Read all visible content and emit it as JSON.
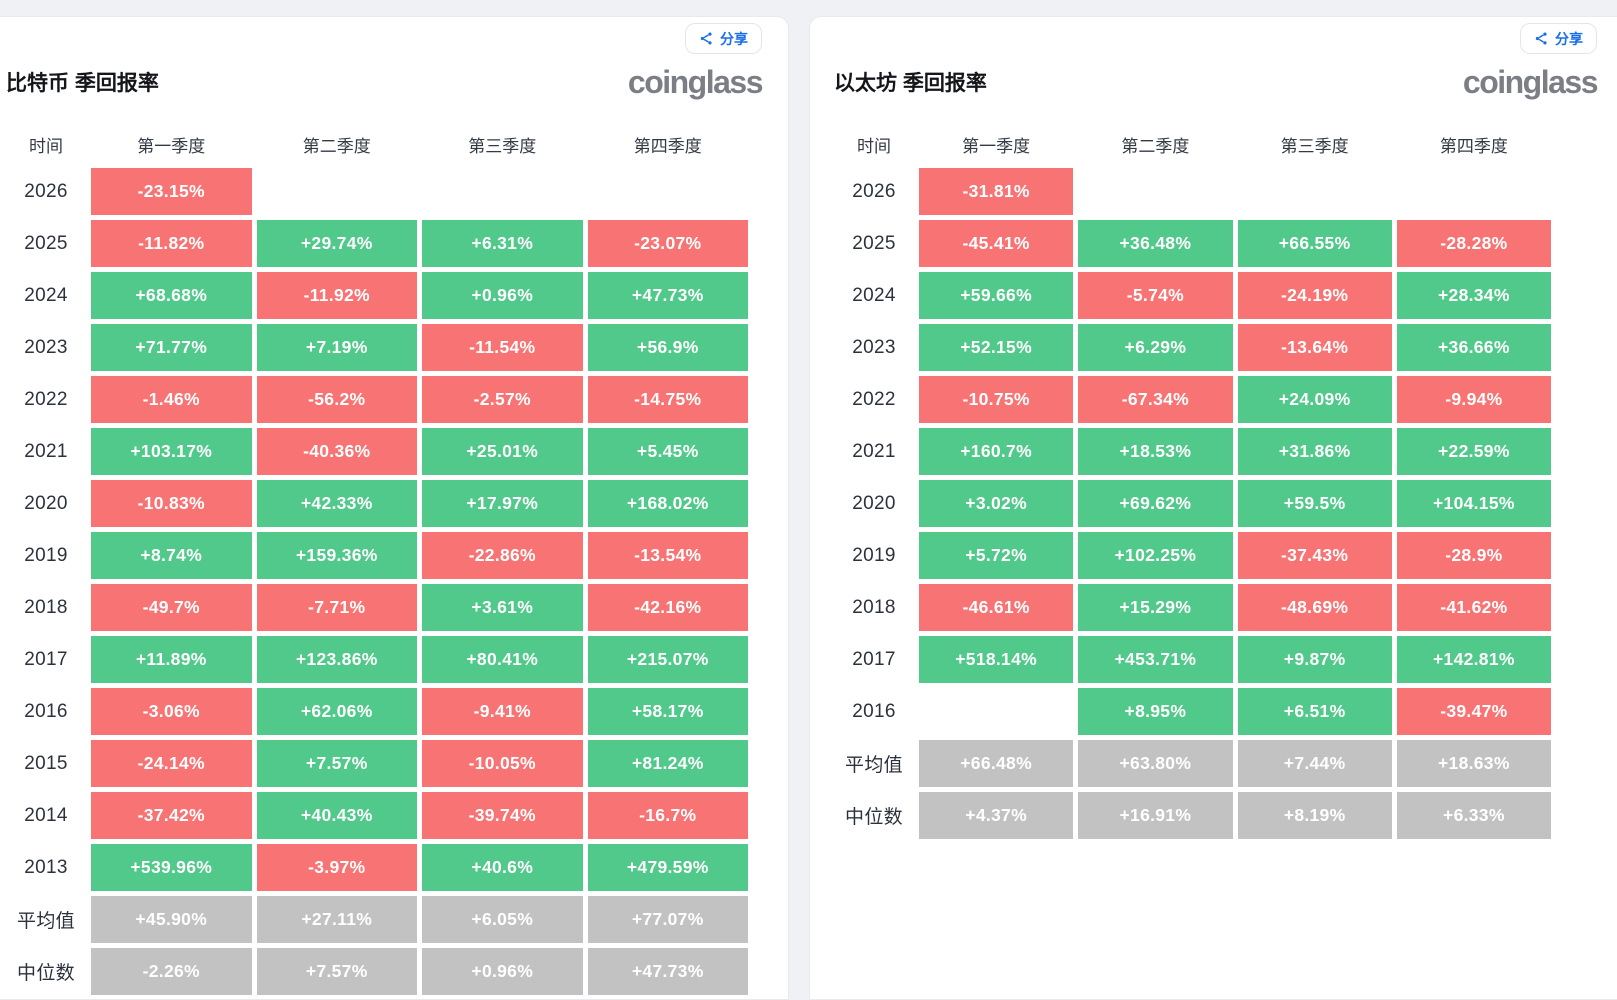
{
  "ui": {
    "share_label": "分享",
    "logo_text": "coinglass"
  },
  "colors": {
    "positive": "#50c98a",
    "negative": "#f87373",
    "neutral": "#c2c2c3",
    "accent_blue": "#1a6ee8",
    "logo_gray": "#7b7f85",
    "page_background": "#eff1f4"
  },
  "chart_data": [
    {
      "type": "table",
      "title": "比特币 季回报率",
      "columns": [
        "时间",
        "第一季度",
        "第二季度",
        "第三季度",
        "第四季度"
      ],
      "rows": [
        {
          "label": "2026",
          "cells": [
            {
              "value": "-23.15%",
              "tone": "negative"
            },
            null,
            null,
            null
          ]
        },
        {
          "label": "2025",
          "cells": [
            {
              "value": "-11.82%",
              "tone": "negative"
            },
            {
              "value": "+29.74%",
              "tone": "positive"
            },
            {
              "value": "+6.31%",
              "tone": "positive"
            },
            {
              "value": "-23.07%",
              "tone": "negative"
            }
          ]
        },
        {
          "label": "2024",
          "cells": [
            {
              "value": "+68.68%",
              "tone": "positive"
            },
            {
              "value": "-11.92%",
              "tone": "negative"
            },
            {
              "value": "+0.96%",
              "tone": "positive"
            },
            {
              "value": "+47.73%",
              "tone": "positive"
            }
          ]
        },
        {
          "label": "2023",
          "cells": [
            {
              "value": "+71.77%",
              "tone": "positive"
            },
            {
              "value": "+7.19%",
              "tone": "positive"
            },
            {
              "value": "-11.54%",
              "tone": "negative"
            },
            {
              "value": "+56.9%",
              "tone": "positive"
            }
          ]
        },
        {
          "label": "2022",
          "cells": [
            {
              "value": "-1.46%",
              "tone": "negative"
            },
            {
              "value": "-56.2%",
              "tone": "negative"
            },
            {
              "value": "-2.57%",
              "tone": "negative"
            },
            {
              "value": "-14.75%",
              "tone": "negative"
            }
          ]
        },
        {
          "label": "2021",
          "cells": [
            {
              "value": "+103.17%",
              "tone": "positive"
            },
            {
              "value": "-40.36%",
              "tone": "negative"
            },
            {
              "value": "+25.01%",
              "tone": "positive"
            },
            {
              "value": "+5.45%",
              "tone": "positive"
            }
          ]
        },
        {
          "label": "2020",
          "cells": [
            {
              "value": "-10.83%",
              "tone": "negative"
            },
            {
              "value": "+42.33%",
              "tone": "positive"
            },
            {
              "value": "+17.97%",
              "tone": "positive"
            },
            {
              "value": "+168.02%",
              "tone": "positive"
            }
          ]
        },
        {
          "label": "2019",
          "cells": [
            {
              "value": "+8.74%",
              "tone": "positive"
            },
            {
              "value": "+159.36%",
              "tone": "positive"
            },
            {
              "value": "-22.86%",
              "tone": "negative"
            },
            {
              "value": "-13.54%",
              "tone": "negative"
            }
          ]
        },
        {
          "label": "2018",
          "cells": [
            {
              "value": "-49.7%",
              "tone": "negative"
            },
            {
              "value": "-7.71%",
              "tone": "negative"
            },
            {
              "value": "+3.61%",
              "tone": "positive"
            },
            {
              "value": "-42.16%",
              "tone": "negative"
            }
          ]
        },
        {
          "label": "2017",
          "cells": [
            {
              "value": "+11.89%",
              "tone": "positive"
            },
            {
              "value": "+123.86%",
              "tone": "positive"
            },
            {
              "value": "+80.41%",
              "tone": "positive"
            },
            {
              "value": "+215.07%",
              "tone": "positive"
            }
          ]
        },
        {
          "label": "2016",
          "cells": [
            {
              "value": "-3.06%",
              "tone": "negative"
            },
            {
              "value": "+62.06%",
              "tone": "positive"
            },
            {
              "value": "-9.41%",
              "tone": "negative"
            },
            {
              "value": "+58.17%",
              "tone": "positive"
            }
          ]
        },
        {
          "label": "2015",
          "cells": [
            {
              "value": "-24.14%",
              "tone": "negative"
            },
            {
              "value": "+7.57%",
              "tone": "positive"
            },
            {
              "value": "-10.05%",
              "tone": "negative"
            },
            {
              "value": "+81.24%",
              "tone": "positive"
            }
          ]
        },
        {
          "label": "2014",
          "cells": [
            {
              "value": "-37.42%",
              "tone": "negative"
            },
            {
              "value": "+40.43%",
              "tone": "positive"
            },
            {
              "value": "-39.74%",
              "tone": "negative"
            },
            {
              "value": "-16.7%",
              "tone": "negative"
            }
          ]
        },
        {
          "label": "2013",
          "cells": [
            {
              "value": "+539.96%",
              "tone": "positive"
            },
            {
              "value": "-3.97%",
              "tone": "negative"
            },
            {
              "value": "+40.6%",
              "tone": "positive"
            },
            {
              "value": "+479.59%",
              "tone": "positive"
            }
          ]
        },
        {
          "label": "平均值",
          "cells": [
            {
              "value": "+45.90%",
              "tone": "neutral"
            },
            {
              "value": "+27.11%",
              "tone": "neutral"
            },
            {
              "value": "+6.05%",
              "tone": "neutral"
            },
            {
              "value": "+77.07%",
              "tone": "neutral"
            }
          ]
        },
        {
          "label": "中位数",
          "cells": [
            {
              "value": "-2.26%",
              "tone": "neutral"
            },
            {
              "value": "+7.57%",
              "tone": "neutral"
            },
            {
              "value": "+0.96%",
              "tone": "neutral"
            },
            {
              "value": "+47.73%",
              "tone": "neutral"
            }
          ]
        }
      ]
    },
    {
      "type": "table",
      "title": "以太坊 季回报率",
      "columns": [
        "时间",
        "第一季度",
        "第二季度",
        "第三季度",
        "第四季度"
      ],
      "rows": [
        {
          "label": "2026",
          "cells": [
            {
              "value": "-31.81%",
              "tone": "negative"
            },
            null,
            null,
            null
          ]
        },
        {
          "label": "2025",
          "cells": [
            {
              "value": "-45.41%",
              "tone": "negative"
            },
            {
              "value": "+36.48%",
              "tone": "positive"
            },
            {
              "value": "+66.55%",
              "tone": "positive"
            },
            {
              "value": "-28.28%",
              "tone": "negative"
            }
          ]
        },
        {
          "label": "2024",
          "cells": [
            {
              "value": "+59.66%",
              "tone": "positive"
            },
            {
              "value": "-5.74%",
              "tone": "negative"
            },
            {
              "value": "-24.19%",
              "tone": "negative"
            },
            {
              "value": "+28.34%",
              "tone": "positive"
            }
          ]
        },
        {
          "label": "2023",
          "cells": [
            {
              "value": "+52.15%",
              "tone": "positive"
            },
            {
              "value": "+6.29%",
              "tone": "positive"
            },
            {
              "value": "-13.64%",
              "tone": "negative"
            },
            {
              "value": "+36.66%",
              "tone": "positive"
            }
          ]
        },
        {
          "label": "2022",
          "cells": [
            {
              "value": "-10.75%",
              "tone": "negative"
            },
            {
              "value": "-67.34%",
              "tone": "negative"
            },
            {
              "value": "+24.09%",
              "tone": "positive"
            },
            {
              "value": "-9.94%",
              "tone": "negative"
            }
          ]
        },
        {
          "label": "2021",
          "cells": [
            {
              "value": "+160.7%",
              "tone": "positive"
            },
            {
              "value": "+18.53%",
              "tone": "positive"
            },
            {
              "value": "+31.86%",
              "tone": "positive"
            },
            {
              "value": "+22.59%",
              "tone": "positive"
            }
          ]
        },
        {
          "label": "2020",
          "cells": [
            {
              "value": "+3.02%",
              "tone": "positive"
            },
            {
              "value": "+69.62%",
              "tone": "positive"
            },
            {
              "value": "+59.5%",
              "tone": "positive"
            },
            {
              "value": "+104.15%",
              "tone": "positive"
            }
          ]
        },
        {
          "label": "2019",
          "cells": [
            {
              "value": "+5.72%",
              "tone": "positive"
            },
            {
              "value": "+102.25%",
              "tone": "positive"
            },
            {
              "value": "-37.43%",
              "tone": "negative"
            },
            {
              "value": "-28.9%",
              "tone": "negative"
            }
          ]
        },
        {
          "label": "2018",
          "cells": [
            {
              "value": "-46.61%",
              "tone": "negative"
            },
            {
              "value": "+15.29%",
              "tone": "positive"
            },
            {
              "value": "-48.69%",
              "tone": "negative"
            },
            {
              "value": "-41.62%",
              "tone": "negative"
            }
          ]
        },
        {
          "label": "2017",
          "cells": [
            {
              "value": "+518.14%",
              "tone": "positive"
            },
            {
              "value": "+453.71%",
              "tone": "positive"
            },
            {
              "value": "+9.87%",
              "tone": "positive"
            },
            {
              "value": "+142.81%",
              "tone": "positive"
            }
          ]
        },
        {
          "label": "2016",
          "cells": [
            null,
            {
              "value": "+8.95%",
              "tone": "positive"
            },
            {
              "value": "+6.51%",
              "tone": "positive"
            },
            {
              "value": "-39.47%",
              "tone": "negative"
            }
          ]
        },
        {
          "label": "平均值",
          "cells": [
            {
              "value": "+66.48%",
              "tone": "neutral"
            },
            {
              "value": "+63.80%",
              "tone": "neutral"
            },
            {
              "value": "+7.44%",
              "tone": "neutral"
            },
            {
              "value": "+18.63%",
              "tone": "neutral"
            }
          ]
        },
        {
          "label": "中位数",
          "cells": [
            {
              "value": "+4.37%",
              "tone": "neutral"
            },
            {
              "value": "+16.91%",
              "tone": "neutral"
            },
            {
              "value": "+8.19%",
              "tone": "neutral"
            },
            {
              "value": "+6.33%",
              "tone": "neutral"
            }
          ]
        }
      ]
    }
  ]
}
